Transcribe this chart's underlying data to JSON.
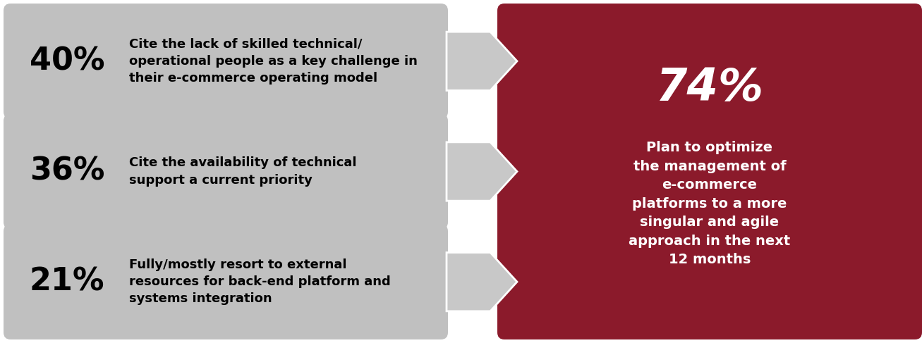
{
  "bg_color": "#ffffff",
  "left_box_color": "#c0c0c0",
  "right_box_color": "#8b1a2b",
  "arrow_color": "#c8c8c8",
  "text_color_dark": "#000000",
  "text_color_light": "#ffffff",
  "percentages": [
    "40%",
    "36%",
    "21%"
  ],
  "descriptions": [
    "Cite the lack of skilled technical/\noperational people as a key challenge in\ntheir e-commerce operating model",
    "Cite the availability of technical\nsupport a current priority",
    "Fully/mostly resort to external\nresources for back-end platform and\nsystems integration"
  ],
  "right_percentage": "74%",
  "right_text": "Plan to optimize\nthe management of\ne-commerce\nplatforms to a more\nsingular and agile\napproach in the next\n12 months",
  "figsize": [
    13.07,
    4.87
  ],
  "dpi": 100
}
